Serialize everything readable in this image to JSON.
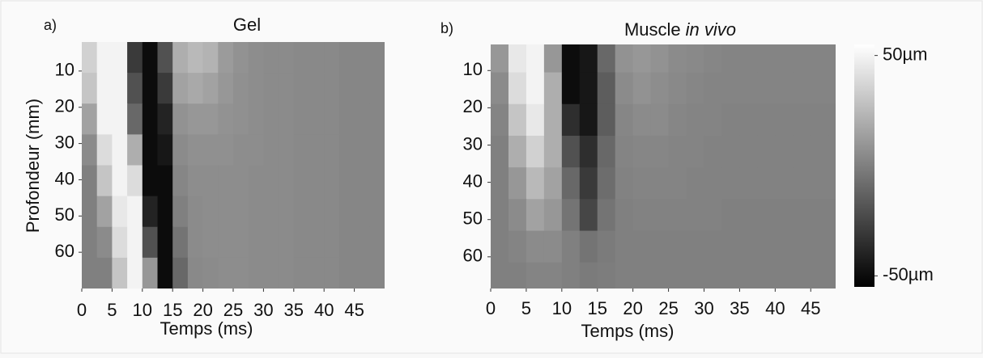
{
  "chart_data": [
    {
      "type": "heatmap",
      "panel_label": "a)",
      "title": "Gel",
      "x_label": "Temps (ms)",
      "y_label": "Profondeur (mm)",
      "x": [
        1.25,
        3.75,
        6.25,
        8.75,
        11.25,
        13.75,
        16.25,
        18.75,
        21.25,
        23.75,
        26.25,
        28.75,
        31.25,
        33.75,
        36.25,
        38.75,
        41.25,
        43.75,
        46.25,
        48.75
      ],
      "y": [
        6.25,
        14.75,
        23.25,
        31.75,
        40.25,
        48.75,
        57.25,
        65.75
      ],
      "values": [
        [
          35,
          50,
          50,
          -30,
          -50,
          -20,
          20,
          25,
          22,
          12,
          8,
          6,
          5,
          5,
          4,
          4,
          4,
          3,
          3,
          3
        ],
        [
          30,
          50,
          50,
          -20,
          -50,
          -30,
          15,
          18,
          15,
          10,
          7,
          6,
          5,
          5,
          4,
          4,
          4,
          3,
          3,
          3
        ],
        [
          15,
          50,
          50,
          -10,
          -50,
          -40,
          8,
          10,
          10,
          8,
          7,
          6,
          5,
          5,
          4,
          4,
          4,
          3,
          3,
          3
        ],
        [
          5,
          40,
          50,
          20,
          -50,
          -45,
          5,
          7,
          7,
          7,
          6,
          6,
          5,
          5,
          4,
          4,
          4,
          3,
          3,
          3
        ],
        [
          0,
          30,
          50,
          40,
          -50,
          -50,
          3,
          6,
          6,
          6,
          6,
          5,
          5,
          5,
          4,
          4,
          4,
          3,
          3,
          3
        ],
        [
          0,
          15,
          45,
          50,
          -40,
          -50,
          0,
          5,
          6,
          6,
          6,
          5,
          5,
          5,
          4,
          4,
          4,
          3,
          3,
          3
        ],
        [
          0,
          5,
          40,
          50,
          -20,
          -50,
          -5,
          5,
          6,
          6,
          6,
          5,
          5,
          5,
          4,
          4,
          4,
          3,
          3,
          3
        ],
        [
          0,
          0,
          30,
          50,
          10,
          -50,
          -10,
          4,
          5,
          6,
          6,
          5,
          5,
          5,
          4,
          4,
          4,
          3,
          3,
          3
        ]
      ],
      "xlim": [
        0,
        50
      ],
      "ylim": [
        2,
        70
      ],
      "xticks": [
        0,
        5,
        10,
        15,
        20,
        25,
        30,
        35,
        40,
        45
      ],
      "yticks": [
        10,
        20,
        30,
        40,
        50,
        60
      ]
    },
    {
      "type": "heatmap",
      "panel_label": "b)",
      "title": "Muscle",
      "title_emphasis": "in vivo",
      "x_label": "Temps (ms)",
      "x": [
        1.25,
        3.75,
        6.25,
        8.75,
        11.25,
        13.75,
        16.25,
        18.75,
        21.25,
        23.75,
        26.25,
        28.75,
        31.25,
        33.75,
        36.25,
        38.75,
        41.25,
        43.75,
        46.25,
        48.75
      ],
      "y": [
        6.25,
        14.75,
        23.25,
        31.75,
        40.25,
        48.75,
        57.25,
        65.75
      ],
      "values": [
        [
          10,
          45,
          50,
          10,
          -50,
          -45,
          -10,
          8,
          10,
          8,
          5,
          4,
          3,
          2,
          2,
          2,
          2,
          2,
          2,
          2
        ],
        [
          5,
          40,
          50,
          20,
          -50,
          -45,
          -15,
          5,
          8,
          6,
          4,
          3,
          2,
          2,
          2,
          2,
          2,
          2,
          2,
          2
        ],
        [
          2,
          30,
          45,
          20,
          -35,
          -45,
          -15,
          3,
          5,
          5,
          3,
          2,
          2,
          1,
          1,
          1,
          1,
          1,
          1,
          1
        ],
        [
          0,
          20,
          35,
          20,
          -20,
          -35,
          -10,
          2,
          3,
          3,
          2,
          2,
          1,
          1,
          1,
          1,
          1,
          1,
          1,
          1
        ],
        [
          0,
          10,
          25,
          15,
          -10,
          -30,
          -8,
          1,
          2,
          2,
          2,
          1,
          1,
          1,
          1,
          1,
          1,
          1,
          1,
          1
        ],
        [
          0,
          5,
          15,
          10,
          -5,
          -25,
          -5,
          0,
          1,
          1,
          1,
          1,
          1,
          0,
          0,
          0,
          0,
          0,
          0,
          0
        ],
        [
          0,
          2,
          5,
          5,
          0,
          -5,
          -2,
          0,
          0,
          0,
          0,
          0,
          0,
          0,
          0,
          0,
          0,
          0,
          0,
          0
        ],
        [
          0,
          0,
          2,
          2,
          0,
          -2,
          -1,
          0,
          0,
          0,
          0,
          0,
          0,
          0,
          0,
          0,
          0,
          0,
          0,
          0
        ]
      ],
      "xlim": [
        0,
        48.5
      ],
      "ylim": [
        3,
        68.5
      ],
      "xticks": [
        0,
        5,
        10,
        15,
        20,
        25,
        30,
        35,
        40,
        45
      ],
      "yticks": [
        10,
        20,
        30,
        40,
        50,
        60
      ]
    }
  ],
  "colorbar": {
    "zlim": [
      -55,
      55
    ],
    "ticks": [
      {
        "value": 50,
        "label": "50µm"
      },
      {
        "value": -50,
        "label": "-50µm"
      }
    ]
  }
}
